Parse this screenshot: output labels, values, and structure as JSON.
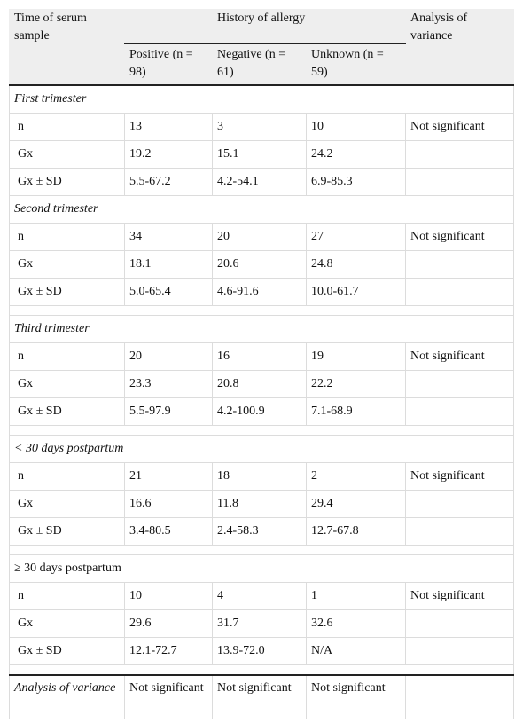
{
  "header": {
    "time": "Time of serum sample",
    "group": "History of allergy",
    "positive": "Positive (n = 98)",
    "negative": "Negative (n = 61)",
    "unknown": "Unknown (n = 59)",
    "anova": "Analysis of variance"
  },
  "sections": [
    {
      "title": "First trimester",
      "rows": [
        [
          "n",
          "13",
          "3",
          "10",
          "Not significant"
        ],
        [
          "Gx",
          "19.2",
          "15.1",
          "24.2"
        ],
        [
          "Gx ± SD",
          "5.5-67.2",
          "4.2-54.1",
          "6.9-85.3"
        ]
      ]
    },
    {
      "title": "Second trimester",
      "rows": [
        [
          "n",
          "34",
          "20",
          "27",
          "Not significant"
        ],
        [
          "Gx",
          "18.1",
          "20.6",
          "24.8"
        ],
        [
          "Gx ± SD",
          "5.0-65.4",
          "4.6-91.6",
          "10.0-61.7"
        ]
      ]
    },
    {
      "title": "Third trimester",
      "rows": [
        [
          "n",
          "20",
          "16",
          "19",
          "Not significant"
        ],
        [
          "Gx",
          "23.3",
          "20.8",
          "22.2"
        ],
        [
          "Gx ± SD",
          "5.5-97.9",
          "4.2-100.9",
          "7.1-68.9"
        ]
      ]
    },
    {
      "title": "< 30 days postpartum",
      "rows": [
        [
          "n",
          "21",
          "18",
          "2",
          "Not significant"
        ],
        [
          "Gx",
          "16.6",
          "11.8",
          "29.4"
        ],
        [
          "Gx ± SD",
          "3.4-80.5",
          "2.4-58.3",
          "12.7-67.8"
        ]
      ]
    },
    {
      "title": "≥ 30 days postpartum",
      "rows": [
        [
          "n",
          "10",
          "4",
          "1",
          "Not significant"
        ],
        [
          "Gx",
          "29.6",
          "31.7",
          "32.6"
        ],
        [
          "Gx ± SD",
          "12.1-72.7",
          "13.9-72.0",
          "N/A"
        ]
      ]
    }
  ],
  "footer": {
    "label": "Analysis of variance",
    "values": [
      "Not significant",
      "Not significant",
      "Not significant"
    ]
  }
}
